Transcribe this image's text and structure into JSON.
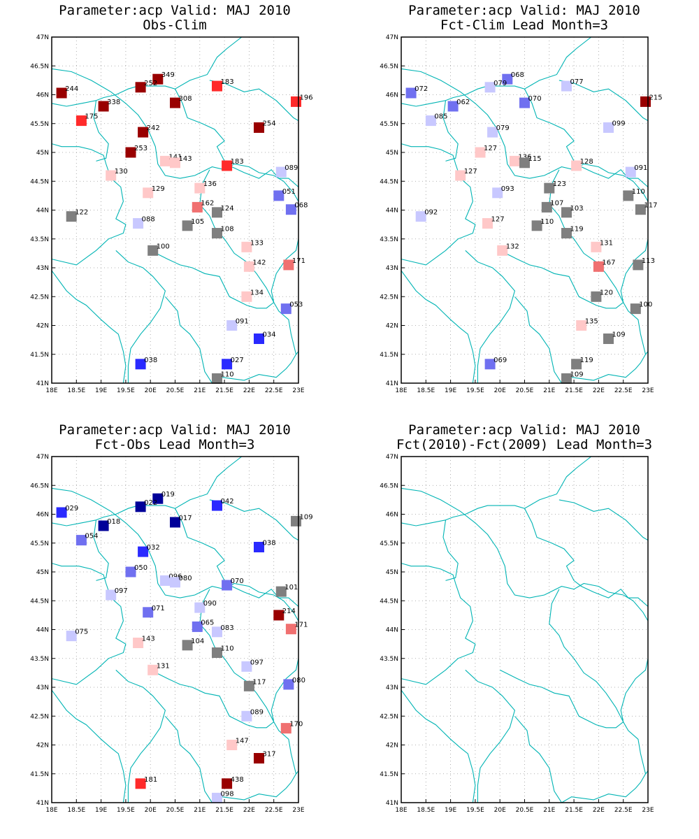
{
  "colors": {
    "dark_red": "#990000",
    "red": "#ff2a2a",
    "mid_red": "#f07070",
    "light_red": "#ffc8c8",
    "gray": "#7f7f7f",
    "light_blue": "#c8c8ff",
    "mid_blue": "#7070f0",
    "blue": "#2a2aff",
    "dark_blue": "#000099",
    "border": "#00b4b4",
    "grid": "#999999"
  },
  "axis": {
    "x_ticks": [
      "18E",
      "18.5E",
      "19E",
      "19.5E",
      "20E",
      "20.5E",
      "21E",
      "21.5E",
      "22E",
      "22.5E",
      "23E"
    ],
    "y_ticks": [
      "41N",
      "41.5N",
      "42N",
      "42.5N",
      "43N",
      "43.5N",
      "44N",
      "44.5N",
      "45N",
      "45.5N",
      "46N",
      "46.5N",
      "47N"
    ]
  },
  "chart_data": [
    {
      "type": "scatter",
      "title": "Parameter:acp Valid: MAJ 2010",
      "subtitle": "Obs-Clim",
      "xlim": [
        18,
        23
      ],
      "ylim": [
        41,
        47
      ],
      "grid": true,
      "points": [
        {
          "x": 18.2,
          "y": 46.03,
          "label": "244",
          "color": "dark_red"
        },
        {
          "x": 20.15,
          "y": 46.27,
          "label": "349",
          "color": "dark_red"
        },
        {
          "x": 19.8,
          "y": 46.13,
          "label": "252",
          "color": "dark_red"
        },
        {
          "x": 21.35,
          "y": 46.15,
          "label": "183",
          "color": "red"
        },
        {
          "x": 22.95,
          "y": 45.88,
          "label": "196",
          "color": "red"
        },
        {
          "x": 19.05,
          "y": 45.8,
          "label": "338",
          "color": "dark_red"
        },
        {
          "x": 20.5,
          "y": 45.86,
          "label": "308",
          "color": "dark_red"
        },
        {
          "x": 18.6,
          "y": 45.55,
          "label": "175",
          "color": "red"
        },
        {
          "x": 19.85,
          "y": 45.35,
          "label": "242",
          "color": "dark_red"
        },
        {
          "x": 22.2,
          "y": 45.43,
          "label": "254",
          "color": "dark_red"
        },
        {
          "x": 19.6,
          "y": 45.0,
          "label": "253",
          "color": "dark_red"
        },
        {
          "x": 20.3,
          "y": 44.85,
          "label": "141",
          "color": "light_red"
        },
        {
          "x": 20.5,
          "y": 44.82,
          "label": "143",
          "color": "light_red"
        },
        {
          "x": 21.55,
          "y": 44.77,
          "label": "183",
          "color": "red"
        },
        {
          "x": 22.65,
          "y": 44.66,
          "label": "089",
          "color": "light_blue"
        },
        {
          "x": 19.2,
          "y": 44.6,
          "label": "130",
          "color": "light_red"
        },
        {
          "x": 19.95,
          "y": 44.3,
          "label": "129",
          "color": "light_red"
        },
        {
          "x": 21.0,
          "y": 44.38,
          "label": "136",
          "color": "light_red"
        },
        {
          "x": 22.6,
          "y": 44.25,
          "label": "051",
          "color": "mid_blue"
        },
        {
          "x": 20.95,
          "y": 44.05,
          "label": "162",
          "color": "mid_red"
        },
        {
          "x": 21.35,
          "y": 43.96,
          "label": "124",
          "color": "gray"
        },
        {
          "x": 22.85,
          "y": 44.01,
          "label": "068",
          "color": "mid_blue"
        },
        {
          "x": 18.4,
          "y": 43.89,
          "label": "122",
          "color": "gray"
        },
        {
          "x": 19.75,
          "y": 43.77,
          "label": "088",
          "color": "light_blue"
        },
        {
          "x": 20.75,
          "y": 43.73,
          "label": "105",
          "color": "gray"
        },
        {
          "x": 21.35,
          "y": 43.6,
          "label": "108",
          "color": "gray"
        },
        {
          "x": 20.05,
          "y": 43.3,
          "label": "100",
          "color": "gray"
        },
        {
          "x": 21.95,
          "y": 43.36,
          "label": "133",
          "color": "light_red"
        },
        {
          "x": 22.0,
          "y": 43.02,
          "label": "142",
          "color": "light_red"
        },
        {
          "x": 22.8,
          "y": 43.05,
          "label": "171",
          "color": "mid_red"
        },
        {
          "x": 21.95,
          "y": 42.5,
          "label": "134",
          "color": "light_red"
        },
        {
          "x": 22.75,
          "y": 42.29,
          "label": "053",
          "color": "mid_blue"
        },
        {
          "x": 21.65,
          "y": 42.0,
          "label": "091",
          "color": "light_blue"
        },
        {
          "x": 22.2,
          "y": 41.77,
          "label": "034",
          "color": "blue"
        },
        {
          "x": 19.8,
          "y": 41.33,
          "label": "038",
          "color": "blue"
        },
        {
          "x": 21.55,
          "y": 41.33,
          "label": "027",
          "color": "blue"
        },
        {
          "x": 21.35,
          "y": 41.08,
          "label": "110",
          "color": "gray"
        }
      ]
    },
    {
      "type": "scatter",
      "title": "Parameter:acp Valid: MAJ 2010",
      "subtitle": "Fct-Clim Lead Month=3",
      "xlim": [
        18,
        23
      ],
      "ylim": [
        41,
        47
      ],
      "grid": true,
      "points": [
        {
          "x": 18.2,
          "y": 46.03,
          "label": "072",
          "color": "mid_blue"
        },
        {
          "x": 20.15,
          "y": 46.27,
          "label": "068",
          "color": "mid_blue"
        },
        {
          "x": 19.8,
          "y": 46.13,
          "label": "079",
          "color": "light_blue"
        },
        {
          "x": 21.35,
          "y": 46.15,
          "label": "077",
          "color": "light_blue"
        },
        {
          "x": 22.95,
          "y": 45.88,
          "label": "215",
          "color": "dark_red"
        },
        {
          "x": 19.05,
          "y": 45.8,
          "label": "062",
          "color": "mid_blue"
        },
        {
          "x": 20.5,
          "y": 45.86,
          "label": "070",
          "color": "mid_blue"
        },
        {
          "x": 18.6,
          "y": 45.55,
          "label": "085",
          "color": "light_blue"
        },
        {
          "x": 19.85,
          "y": 45.35,
          "label": "079",
          "color": "light_blue"
        },
        {
          "x": 22.2,
          "y": 45.43,
          "label": "099",
          "color": "light_blue"
        },
        {
          "x": 19.6,
          "y": 45.0,
          "label": "127",
          "color": "light_red"
        },
        {
          "x": 20.3,
          "y": 44.85,
          "label": "136",
          "color": "light_red"
        },
        {
          "x": 20.5,
          "y": 44.82,
          "label": "115",
          "color": "gray"
        },
        {
          "x": 21.55,
          "y": 44.77,
          "label": "128",
          "color": "light_red"
        },
        {
          "x": 22.65,
          "y": 44.66,
          "label": "091",
          "color": "light_blue"
        },
        {
          "x": 19.2,
          "y": 44.6,
          "label": "127",
          "color": "light_red"
        },
        {
          "x": 19.95,
          "y": 44.3,
          "label": "093",
          "color": "light_blue"
        },
        {
          "x": 21.0,
          "y": 44.38,
          "label": "123",
          "color": "gray"
        },
        {
          "x": 22.6,
          "y": 44.25,
          "label": "110",
          "color": "gray"
        },
        {
          "x": 20.95,
          "y": 44.05,
          "label": "107",
          "color": "gray"
        },
        {
          "x": 21.35,
          "y": 43.96,
          "label": "103",
          "color": "gray"
        },
        {
          "x": 22.85,
          "y": 44.01,
          "label": "117",
          "color": "gray"
        },
        {
          "x": 18.4,
          "y": 43.89,
          "label": "092",
          "color": "light_blue"
        },
        {
          "x": 19.75,
          "y": 43.77,
          "label": "127",
          "color": "light_red"
        },
        {
          "x": 20.75,
          "y": 43.73,
          "label": "110",
          "color": "gray"
        },
        {
          "x": 21.35,
          "y": 43.6,
          "label": "119",
          "color": "gray"
        },
        {
          "x": 20.05,
          "y": 43.3,
          "label": "132",
          "color": "light_red"
        },
        {
          "x": 21.95,
          "y": 43.36,
          "label": "131",
          "color": "light_red"
        },
        {
          "x": 22.0,
          "y": 43.02,
          "label": "167",
          "color": "mid_red"
        },
        {
          "x": 22.8,
          "y": 43.05,
          "label": "113",
          "color": "gray"
        },
        {
          "x": 21.95,
          "y": 42.5,
          "label": "120",
          "color": "gray"
        },
        {
          "x": 22.75,
          "y": 42.29,
          "label": "100",
          "color": "gray"
        },
        {
          "x": 21.65,
          "y": 42.0,
          "label": "135",
          "color": "light_red"
        },
        {
          "x": 22.2,
          "y": 41.77,
          "label": "109",
          "color": "gray"
        },
        {
          "x": 19.8,
          "y": 41.33,
          "label": "069",
          "color": "mid_blue"
        },
        {
          "x": 21.55,
          "y": 41.33,
          "label": "119",
          "color": "gray"
        },
        {
          "x": 21.35,
          "y": 41.08,
          "label": "109",
          "color": "gray"
        }
      ]
    },
    {
      "type": "scatter",
      "title": "Parameter:acp Valid: MAJ 2010",
      "subtitle": "Fct-Obs Lead Month=3",
      "xlim": [
        18,
        23
      ],
      "ylim": [
        41,
        47
      ],
      "grid": true,
      "points": [
        {
          "x": 18.2,
          "y": 46.03,
          "label": "029",
          "color": "blue"
        },
        {
          "x": 20.15,
          "y": 46.27,
          "label": "019",
          "color": "dark_blue"
        },
        {
          "x": 19.8,
          "y": 46.13,
          "label": "022",
          "color": "dark_blue"
        },
        {
          "x": 21.35,
          "y": 46.15,
          "label": "042",
          "color": "blue"
        },
        {
          "x": 22.95,
          "y": 45.88,
          "label": "109",
          "color": "gray"
        },
        {
          "x": 19.05,
          "y": 45.8,
          "label": "018",
          "color": "dark_blue"
        },
        {
          "x": 20.5,
          "y": 45.86,
          "label": "017",
          "color": "dark_blue"
        },
        {
          "x": 18.6,
          "y": 45.55,
          "label": "054",
          "color": "mid_blue"
        },
        {
          "x": 19.85,
          "y": 45.35,
          "label": "032",
          "color": "blue"
        },
        {
          "x": 22.2,
          "y": 45.43,
          "label": "038",
          "color": "blue"
        },
        {
          "x": 19.6,
          "y": 45.0,
          "label": "050",
          "color": "mid_blue"
        },
        {
          "x": 20.3,
          "y": 44.85,
          "label": "096",
          "color": "light_blue"
        },
        {
          "x": 20.5,
          "y": 44.82,
          "label": "080",
          "color": "light_blue"
        },
        {
          "x": 21.55,
          "y": 44.77,
          "label": "070",
          "color": "mid_blue"
        },
        {
          "x": 22.65,
          "y": 44.66,
          "label": "101",
          "color": "gray"
        },
        {
          "x": 19.2,
          "y": 44.6,
          "label": "097",
          "color": "light_blue"
        },
        {
          "x": 19.95,
          "y": 44.3,
          "label": "071",
          "color": "mid_blue"
        },
        {
          "x": 21.0,
          "y": 44.38,
          "label": "090",
          "color": "light_blue"
        },
        {
          "x": 22.6,
          "y": 44.25,
          "label": "214",
          "color": "dark_red"
        },
        {
          "x": 20.95,
          "y": 44.05,
          "label": "065",
          "color": "mid_blue"
        },
        {
          "x": 21.35,
          "y": 43.96,
          "label": "083",
          "color": "light_blue"
        },
        {
          "x": 22.85,
          "y": 44.01,
          "label": "171",
          "color": "mid_red"
        },
        {
          "x": 18.4,
          "y": 43.89,
          "label": "075",
          "color": "light_blue"
        },
        {
          "x": 19.75,
          "y": 43.77,
          "label": "143",
          "color": "light_red"
        },
        {
          "x": 20.75,
          "y": 43.73,
          "label": "104",
          "color": "gray"
        },
        {
          "x": 21.35,
          "y": 43.6,
          "label": "110",
          "color": "gray"
        },
        {
          "x": 20.05,
          "y": 43.3,
          "label": "131",
          "color": "light_red"
        },
        {
          "x": 21.95,
          "y": 43.36,
          "label": "097",
          "color": "light_blue"
        },
        {
          "x": 22.0,
          "y": 43.02,
          "label": "117",
          "color": "gray"
        },
        {
          "x": 22.8,
          "y": 43.05,
          "label": "080",
          "color": "mid_blue"
        },
        {
          "x": 21.95,
          "y": 42.5,
          "label": "089",
          "color": "light_blue"
        },
        {
          "x": 22.75,
          "y": 42.29,
          "label": "170",
          "color": "mid_red"
        },
        {
          "x": 21.65,
          "y": 42.0,
          "label": "147",
          "color": "light_red"
        },
        {
          "x": 22.2,
          "y": 41.77,
          "label": "317",
          "color": "dark_red"
        },
        {
          "x": 19.8,
          "y": 41.33,
          "label": "181",
          "color": "red"
        },
        {
          "x": 21.55,
          "y": 41.33,
          "label": "438",
          "color": "dark_red"
        },
        {
          "x": 21.35,
          "y": 41.08,
          "label": "098",
          "color": "light_blue"
        }
      ]
    },
    {
      "type": "scatter",
      "title": "Parameter:acp Valid: MAJ 2010",
      "subtitle": "Fct(2010)-Fct(2009) Lead Month=3",
      "xlim": [
        18,
        23
      ],
      "ylim": [
        41,
        47
      ],
      "grid": true,
      "points": []
    }
  ]
}
